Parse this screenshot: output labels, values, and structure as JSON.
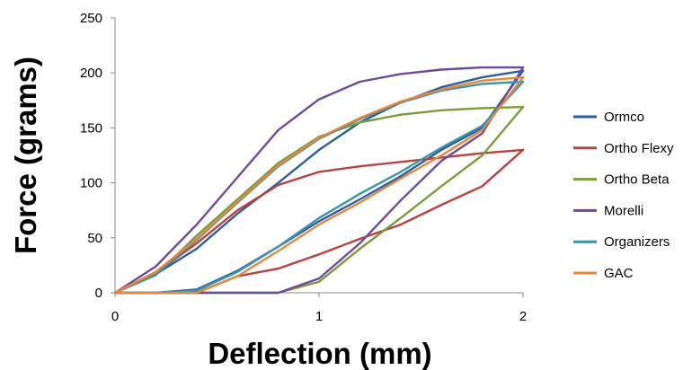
{
  "chart_data": {
    "type": "line",
    "title": "",
    "xlabel": "Deflection (mm)",
    "ylabel": "Force (grams)",
    "xlim": [
      0,
      2
    ],
    "ylim": [
      0,
      250
    ],
    "x_ticks": [
      "0",
      "1",
      "2"
    ],
    "y_ticks": [
      "0",
      "50",
      "100",
      "150",
      "200",
      "250"
    ],
    "grid": false,
    "legend_position": "right",
    "series": [
      {
        "name": "Ormco",
        "color": "#2E5F9A",
        "loading": [
          [
            0,
            0
          ],
          [
            0.2,
            17
          ],
          [
            0.4,
            40
          ],
          [
            0.6,
            72
          ],
          [
            0.8,
            100
          ],
          [
            1.0,
            130
          ],
          [
            1.2,
            155
          ],
          [
            1.4,
            173
          ],
          [
            1.6,
            187
          ],
          [
            1.8,
            196
          ],
          [
            2.0,
            202
          ]
        ],
        "unloading": [
          [
            2.0,
            202
          ],
          [
            1.8,
            150
          ],
          [
            1.6,
            130
          ],
          [
            1.4,
            106
          ],
          [
            1.2,
            85
          ],
          [
            1.0,
            65
          ],
          [
            0.8,
            42
          ],
          [
            0.6,
            20
          ],
          [
            0.4,
            3
          ],
          [
            0.2,
            0
          ],
          [
            0,
            0
          ]
        ]
      },
      {
        "name": "Ortho Flexy",
        "color": "#B8423F",
        "loading": [
          [
            0,
            0
          ],
          [
            0.2,
            18
          ],
          [
            0.4,
            45
          ],
          [
            0.6,
            75
          ],
          [
            0.8,
            98
          ],
          [
            1.0,
            110
          ],
          [
            1.2,
            115
          ],
          [
            1.4,
            119
          ],
          [
            1.6,
            123
          ],
          [
            1.8,
            127
          ],
          [
            2.0,
            130
          ]
        ],
        "unloading": [
          [
            2.0,
            130
          ],
          [
            1.8,
            97
          ],
          [
            1.6,
            80
          ],
          [
            1.4,
            62
          ],
          [
            1.2,
            49
          ],
          [
            1.0,
            35
          ],
          [
            0.8,
            22
          ],
          [
            0.6,
            15
          ],
          [
            0.4,
            0
          ],
          [
            0.2,
            0
          ],
          [
            0,
            0
          ]
        ]
      },
      {
        "name": "Ortho Beta",
        "color": "#7A9C3A",
        "loading": [
          [
            0,
            0
          ],
          [
            0.2,
            16
          ],
          [
            0.4,
            52
          ],
          [
            0.6,
            85
          ],
          [
            0.8,
            118
          ],
          [
            1.0,
            142
          ],
          [
            1.2,
            155
          ],
          [
            1.4,
            162
          ],
          [
            1.6,
            166
          ],
          [
            1.8,
            168
          ],
          [
            2.0,
            169
          ]
        ],
        "unloading": [
          [
            2.0,
            169
          ],
          [
            1.8,
            125
          ],
          [
            1.6,
            97
          ],
          [
            1.4,
            68
          ],
          [
            1.2,
            40
          ],
          [
            1.0,
            10
          ],
          [
            0.8,
            0
          ],
          [
            0.6,
            0
          ],
          [
            0.4,
            0
          ],
          [
            0.2,
            0
          ],
          [
            0,
            0
          ]
        ]
      },
      {
        "name": "Morelli",
        "color": "#6F4A99",
        "loading": [
          [
            0,
            0
          ],
          [
            0.2,
            24
          ],
          [
            0.4,
            62
          ],
          [
            0.6,
            105
          ],
          [
            0.8,
            148
          ],
          [
            1.0,
            176
          ],
          [
            1.2,
            192
          ],
          [
            1.4,
            199
          ],
          [
            1.6,
            203
          ],
          [
            1.8,
            205
          ],
          [
            2.0,
            205
          ]
        ],
        "unloading": [
          [
            2.0,
            205
          ],
          [
            1.8,
            145
          ],
          [
            1.6,
            120
          ],
          [
            1.4,
            84
          ],
          [
            1.2,
            45
          ],
          [
            1.0,
            13
          ],
          [
            0.8,
            0
          ],
          [
            0.6,
            0
          ],
          [
            0.4,
            0
          ],
          [
            0.2,
            0
          ],
          [
            0,
            0
          ]
        ]
      },
      {
        "name": "Organizers",
        "color": "#3994B0",
        "loading": [
          [
            0,
            0
          ],
          [
            0.2,
            17
          ],
          [
            0.4,
            48
          ],
          [
            0.6,
            82
          ],
          [
            0.8,
            115
          ],
          [
            1.0,
            140
          ],
          [
            1.2,
            158
          ],
          [
            1.4,
            173
          ],
          [
            1.6,
            184
          ],
          [
            1.8,
            190
          ],
          [
            2.0,
            192
          ]
        ],
        "unloading": [
          [
            2.0,
            192
          ],
          [
            1.8,
            152
          ],
          [
            1.6,
            132
          ],
          [
            1.4,
            110
          ],
          [
            1.2,
            90
          ],
          [
            1.0,
            68
          ],
          [
            0.8,
            42
          ],
          [
            0.6,
            19
          ],
          [
            0.4,
            2
          ],
          [
            0.2,
            0
          ],
          [
            0,
            0
          ]
        ]
      },
      {
        "name": "GAC",
        "color": "#E8873A",
        "loading": [
          [
            0,
            0
          ],
          [
            0.2,
            19
          ],
          [
            0.4,
            49
          ],
          [
            0.6,
            83
          ],
          [
            0.8,
            116
          ],
          [
            1.0,
            141
          ],
          [
            1.2,
            159
          ],
          [
            1.4,
            174
          ],
          [
            1.6,
            185
          ],
          [
            1.8,
            193
          ],
          [
            2.0,
            196
          ]
        ],
        "unloading": [
          [
            2.0,
            196
          ],
          [
            1.8,
            148
          ],
          [
            1.6,
            125
          ],
          [
            1.4,
            104
          ],
          [
            1.2,
            82
          ],
          [
            1.0,
            62
          ],
          [
            0.8,
            38
          ],
          [
            0.6,
            15
          ],
          [
            0.4,
            0
          ],
          [
            0.2,
            0
          ],
          [
            0,
            0
          ]
        ]
      }
    ]
  }
}
